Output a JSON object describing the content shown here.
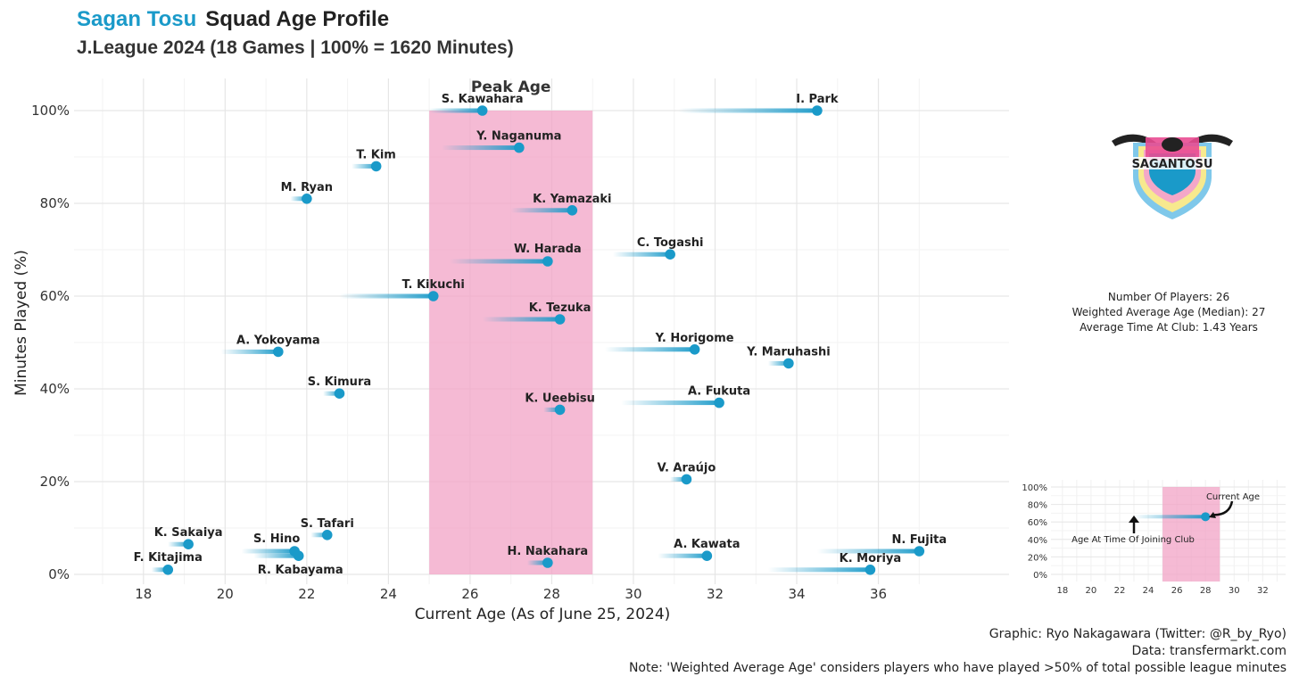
{
  "header": {
    "team": "Sagan Tosu",
    "title": "Squad Age Profile",
    "subtitle": "J.League 2024 (18 Games | 100% = 1620 Minutes)"
  },
  "stats": {
    "players": "Number Of Players: 26",
    "weighted_age": "Weighted Average Age (Median): 27",
    "avg_time": "Average Time At Club: 1.43 Years"
  },
  "credits": {
    "graphic": "Graphic: Ryo Nakagawara (Twitter: @R_by_Ryo)",
    "data": "Data: transfermarkt.com",
    "note": "Note: 'Weighted Average Age' considers players who have played >50% of total possible league minutes"
  },
  "logo_text": "SAGANTOSU",
  "colors": {
    "point": "#1a9ac9",
    "peak": "#f2a3c6",
    "team": "#1a9ac9"
  },
  "chart_data": {
    "type": "scatter",
    "xlabel": "Current Age (As of June 25, 2024)",
    "ylabel": "Minutes Played (%)",
    "xlim": [
      16.3,
      39.2
    ],
    "ylim": [
      0,
      100
    ],
    "xticks": [
      18,
      20,
      22,
      24,
      26,
      28,
      30,
      32,
      34,
      36
    ],
    "yticks": [
      0,
      20,
      40,
      60,
      80,
      100
    ],
    "ytick_labels": [
      "0%",
      "20%",
      "40%",
      "60%",
      "80%",
      "100%"
    ],
    "peak_age": {
      "label": "Peak Age",
      "from": 25,
      "to": 29
    },
    "grid": true,
    "players": [
      {
        "name": "S. Kawahara",
        "age": 26.3,
        "joined": 25.0,
        "minutes": 100
      },
      {
        "name": "I. Park",
        "age": 34.5,
        "joined": 31.1,
        "minutes": 100
      },
      {
        "name": "Y. Naganuma",
        "age": 27.2,
        "joined": 25.3,
        "minutes": 92
      },
      {
        "name": "T. Kim",
        "age": 23.7,
        "joined": 23.1,
        "minutes": 88
      },
      {
        "name": "M. Ryan",
        "age": 22.0,
        "joined": 21.6,
        "minutes": 81
      },
      {
        "name": "K. Yamazaki",
        "age": 28.5,
        "joined": 27.0,
        "minutes": 78.5
      },
      {
        "name": "C. Togashi",
        "age": 30.9,
        "joined": 29.5,
        "minutes": 69
      },
      {
        "name": "W. Harada",
        "age": 27.9,
        "joined": 25.5,
        "minutes": 67.5
      },
      {
        "name": "T. Kikuchi",
        "age": 25.1,
        "joined": 22.8,
        "minutes": 60
      },
      {
        "name": "K. Tezuka",
        "age": 28.2,
        "joined": 26.3,
        "minutes": 55
      },
      {
        "name": "A. Yokoyama",
        "age": 21.3,
        "joined": 19.9,
        "minutes": 48
      },
      {
        "name": "Y. Horigome",
        "age": 31.5,
        "joined": 29.3,
        "minutes": 48.5
      },
      {
        "name": "Y. Maruhashi",
        "age": 33.8,
        "joined": 33.3,
        "minutes": 45.5
      },
      {
        "name": "S. Kimura",
        "age": 22.8,
        "joined": 22.4,
        "minutes": 39
      },
      {
        "name": "A. Fukuta",
        "age": 32.1,
        "joined": 29.7,
        "minutes": 37
      },
      {
        "name": "K. Ueebisu",
        "age": 28.2,
        "joined": 27.8,
        "minutes": 35.5
      },
      {
        "name": "V. Araújo",
        "age": 31.3,
        "joined": 30.9,
        "minutes": 20.5
      },
      {
        "name": "K. Sakaiya",
        "age": 19.1,
        "joined": 18.6,
        "minutes": 6.5
      },
      {
        "name": "S. Tafari",
        "age": 22.5,
        "joined": 22.1,
        "minutes": 8.5
      },
      {
        "name": "S. Hino",
        "age": 21.7,
        "joined": 20.4,
        "minutes": 5
      },
      {
        "name": "R. Kabayama",
        "age": 21.8,
        "joined": 20.7,
        "minutes": 4
      },
      {
        "name": "F. Kitajima",
        "age": 18.6,
        "joined": 18.2,
        "minutes": 1
      },
      {
        "name": "H. Nakahara",
        "age": 27.9,
        "joined": 27.4,
        "minutes": 2.5
      },
      {
        "name": "A. Kawata",
        "age": 31.8,
        "joined": 30.6,
        "minutes": 4
      },
      {
        "name": "N. Fujita",
        "age": 37.0,
        "joined": 34.5,
        "minutes": 5
      },
      {
        "name": "K. Moriya",
        "age": 35.8,
        "joined": 33.3,
        "minutes": 1
      }
    ],
    "legend_inset": {
      "current_label": "Current Age",
      "joined_label": "Age At Time Of Joining Club",
      "xticks": [
        18,
        20,
        22,
        24,
        26,
        28,
        30,
        32
      ],
      "yticks": [
        0,
        20,
        40,
        60,
        80,
        100
      ],
      "ytick_labels": [
        "0%",
        "20%",
        "40%",
        "60%",
        "80%",
        "100%"
      ],
      "xlim": [
        17.2,
        33.6
      ],
      "ylim": [
        0,
        100
      ],
      "peak_from": 25,
      "peak_to": 29,
      "example": {
        "age": 28,
        "joined": 23,
        "minutes": 66
      }
    }
  }
}
